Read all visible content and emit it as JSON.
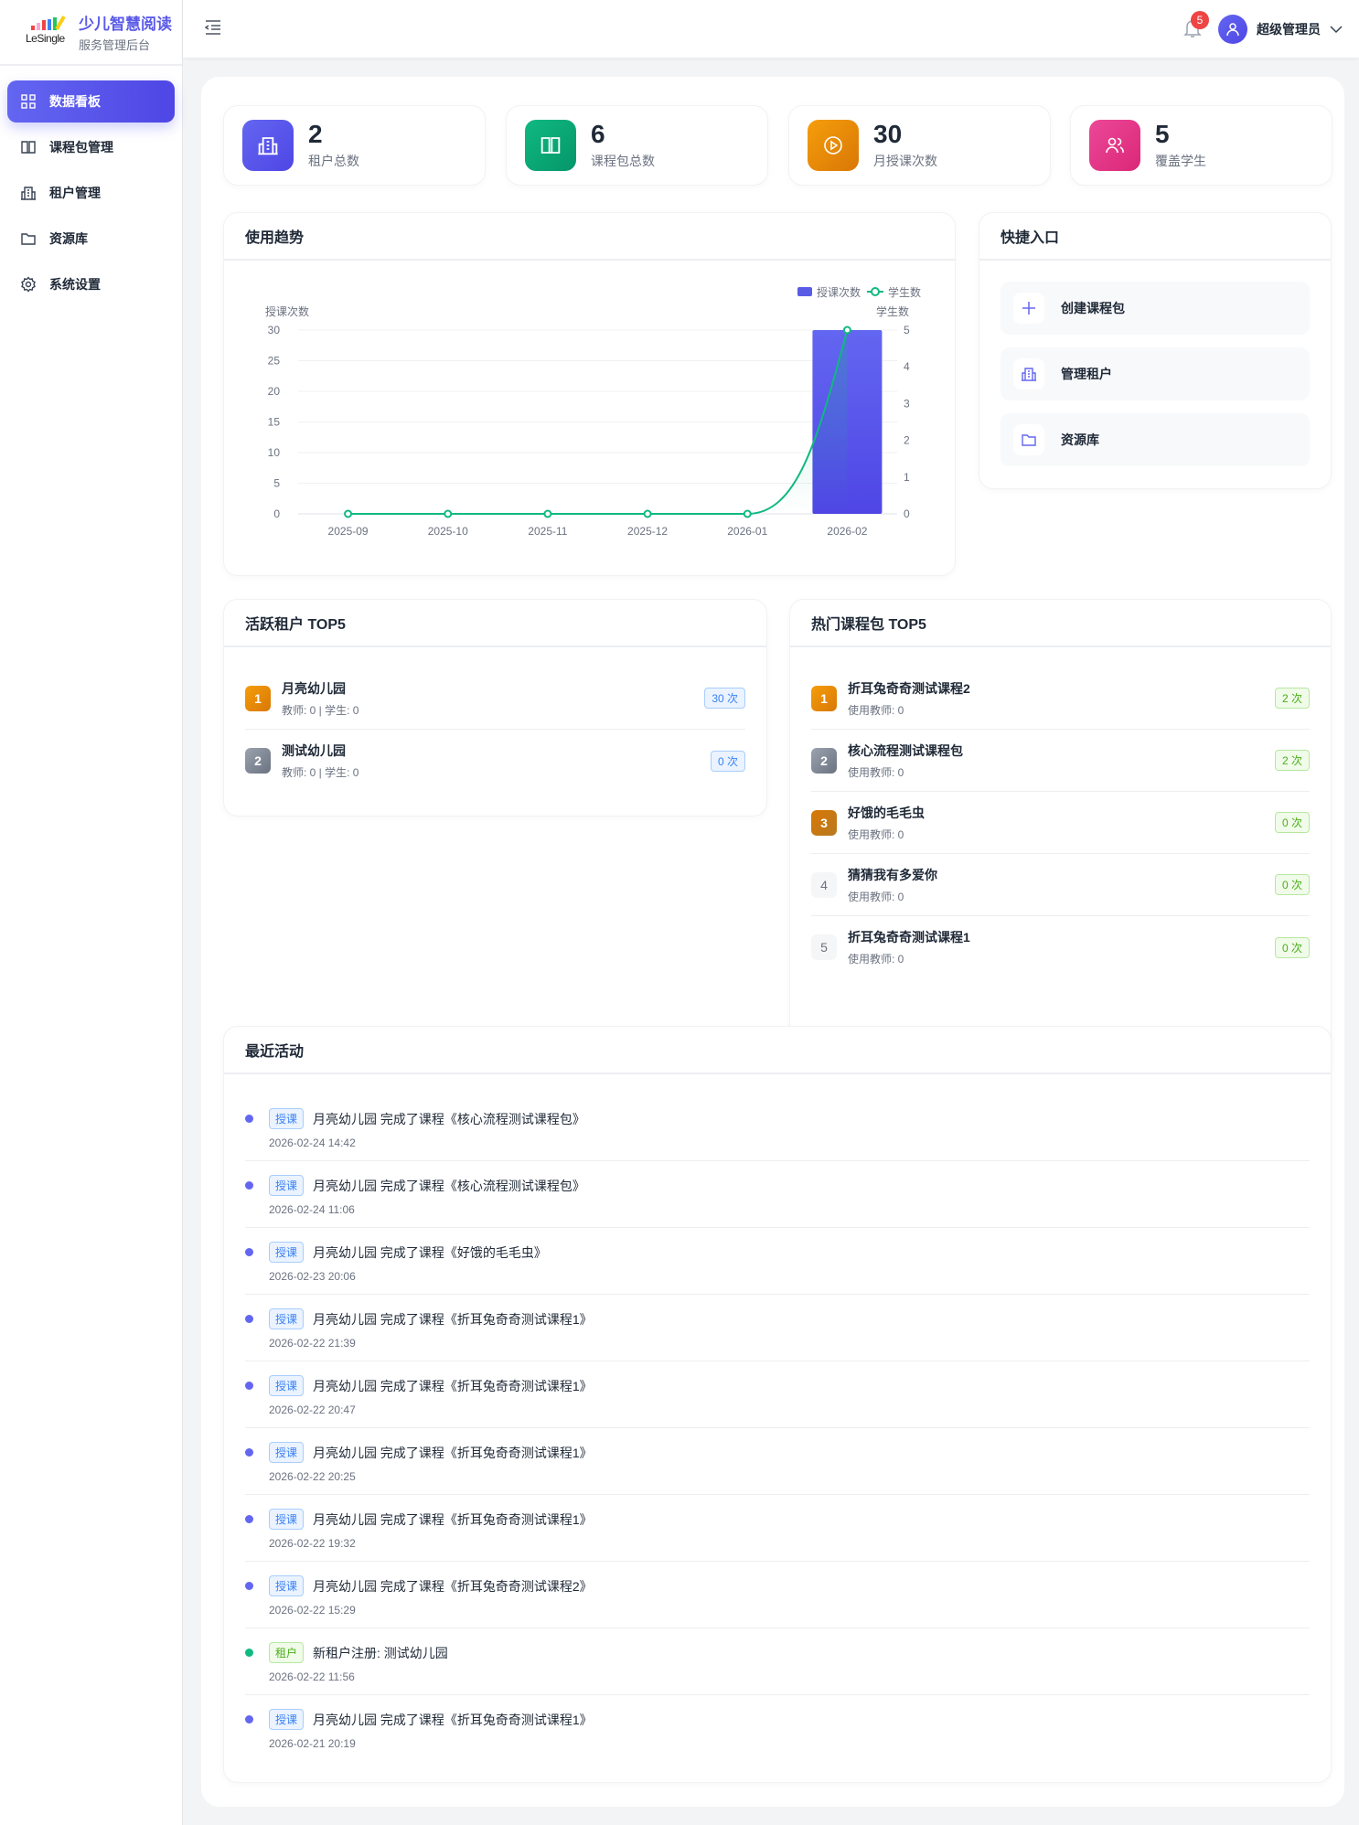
{
  "brand": {
    "logo_text": "LeSingle",
    "title": "少儿智慧阅读",
    "subtitle": "服务管理后台"
  },
  "sidebar": {
    "items": [
      {
        "label": "数据看板",
        "icon": "dashboard-grid-icon",
        "active": true
      },
      {
        "label": "课程包管理",
        "icon": "book-icon"
      },
      {
        "label": "租户管理",
        "icon": "building-icon"
      },
      {
        "label": "资源库",
        "icon": "folder-icon"
      },
      {
        "label": "系统设置",
        "icon": "gear-icon"
      }
    ]
  },
  "header": {
    "notification_count": "5",
    "user_name": "超级管理员"
  },
  "stats": [
    {
      "value": "2",
      "label": "租户总数",
      "icon": "building-icon",
      "color": "#6366f1"
    },
    {
      "value": "6",
      "label": "课程包总数",
      "icon": "book-icon",
      "color": "#10b981"
    },
    {
      "value": "30",
      "label": "月授课次数",
      "icon": "play-circle-icon",
      "color": "#f59e0b"
    },
    {
      "value": "5",
      "label": "覆盖学生",
      "icon": "users-icon",
      "color": "#ec4899"
    }
  ],
  "trend": {
    "title": "使用趋势"
  },
  "chart_data": {
    "type": "bar+line",
    "categories": [
      "2025-09",
      "2025-10",
      "2025-11",
      "2025-12",
      "2026-01",
      "2026-02"
    ],
    "series": [
      {
        "name": "授课次数",
        "type": "bar",
        "axis": "left",
        "color": "#5b5ce6",
        "values": [
          0,
          0,
          0,
          0,
          0,
          30
        ]
      },
      {
        "name": "学生数",
        "type": "line",
        "axis": "right",
        "color": "#10b981",
        "smooth": true,
        "values": [
          0,
          0,
          0,
          0,
          0,
          5
        ]
      }
    ],
    "ylabel_left": "授课次数",
    "ylim_left": [
      0,
      30
    ],
    "yticks_left": [
      "0",
      "5",
      "10",
      "15",
      "20",
      "25",
      "30"
    ],
    "ylabel_right": "学生数",
    "ylim_right": [
      0,
      5
    ],
    "yticks_right": [
      "0",
      "1",
      "2",
      "3",
      "4",
      "5"
    ],
    "legend": "top-right",
    "grid": true
  },
  "quick": {
    "title": "快捷入口",
    "items": [
      {
        "label": "创建课程包",
        "icon": "plus-icon"
      },
      {
        "label": "管理租户",
        "icon": "building-icon"
      },
      {
        "label": "资源库",
        "icon": "folder-icon"
      }
    ]
  },
  "tenants": {
    "title": "活跃租户 TOP5",
    "items": [
      {
        "rank": "1",
        "name": "月亮幼儿园",
        "sub": "教师: 0 | 学生: 0",
        "count": "30 次"
      },
      {
        "rank": "2",
        "name": "测试幼儿园",
        "sub": "教师: 0 | 学生: 0",
        "count": "0 次"
      }
    ]
  },
  "courses": {
    "title": "热门课程包 TOP5",
    "items": [
      {
        "rank": "1",
        "name": "折耳兔奇奇测试课程2",
        "sub": "使用教师: 0",
        "count": "2 次"
      },
      {
        "rank": "2",
        "name": "核心流程测试课程包",
        "sub": "使用教师: 0",
        "count": "2 次"
      },
      {
        "rank": "3",
        "name": "好饿的毛毛虫",
        "sub": "使用教师: 0",
        "count": "0 次"
      },
      {
        "rank": "4",
        "name": "猜猜我有多爱你",
        "sub": "使用教师: 0",
        "count": "0 次"
      },
      {
        "rank": "5",
        "name": "折耳兔奇奇测试课程1",
        "sub": "使用教师: 0",
        "count": "0 次"
      }
    ]
  },
  "activity": {
    "title": "最近活动",
    "items": [
      {
        "tag": "授课",
        "type": "lesson",
        "text": "月亮幼儿园 完成了课程《核心流程测试课程包》",
        "time": "2026-02-24 14:42"
      },
      {
        "tag": "授课",
        "type": "lesson",
        "text": "月亮幼儿园 完成了课程《核心流程测试课程包》",
        "time": "2026-02-24 11:06"
      },
      {
        "tag": "授课",
        "type": "lesson",
        "text": "月亮幼儿园 完成了课程《好饿的毛毛虫》",
        "time": "2026-02-23 20:06"
      },
      {
        "tag": "授课",
        "type": "lesson",
        "text": "月亮幼儿园 完成了课程《折耳兔奇奇测试课程1》",
        "time": "2026-02-22 21:39"
      },
      {
        "tag": "授课",
        "type": "lesson",
        "text": "月亮幼儿园 完成了课程《折耳兔奇奇测试课程1》",
        "time": "2026-02-22 20:47"
      },
      {
        "tag": "授课",
        "type": "lesson",
        "text": "月亮幼儿园 完成了课程《折耳兔奇奇测试课程1》",
        "time": "2026-02-22 20:25"
      },
      {
        "tag": "授课",
        "type": "lesson",
        "text": "月亮幼儿园 完成了课程《折耳兔奇奇测试课程1》",
        "time": "2026-02-22 19:32"
      },
      {
        "tag": "授课",
        "type": "lesson",
        "text": "月亮幼儿园 完成了课程《折耳兔奇奇测试课程2》",
        "time": "2026-02-22 15:29"
      },
      {
        "tag": "租户",
        "type": "tenant",
        "text": "新租户注册: 测试幼儿园",
        "time": "2026-02-22 11:56"
      },
      {
        "tag": "授课",
        "type": "lesson",
        "text": "月亮幼儿园 完成了课程《折耳兔奇奇测试课程1》",
        "time": "2026-02-21 20:19"
      }
    ]
  }
}
